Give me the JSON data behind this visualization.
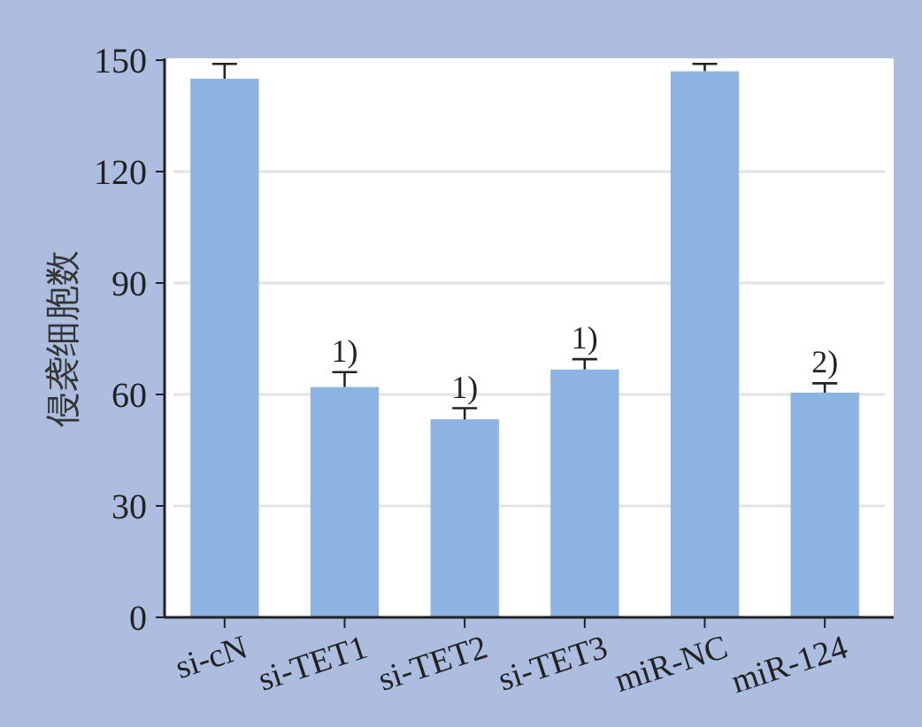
{
  "chart_data": {
    "type": "bar",
    "ylabel": "侵袭细胞数",
    "categories": [
      "si-cN",
      "si-TET1",
      "si-TET2",
      "si-TET3",
      "miR-NC",
      "miR-124"
    ],
    "values": [
      145,
      62,
      53.3,
      66.7,
      147,
      60.5
    ],
    "errors": [
      [
        145,
        149
      ],
      [
        62,
        66
      ],
      [
        53.3,
        56.3
      ],
      [
        66.7,
        69.5
      ],
      [
        147,
        149
      ],
      [
        60.5,
        63
      ]
    ],
    "color": "#8db3e2",
    "ylim": [
      0,
      150
    ],
    "yticks": [
      0,
      30,
      60,
      90,
      120,
      150
    ],
    "grid": "y",
    "annotations": [
      {
        "text": "1)",
        "x": "si-TET1",
        "y": 66
      },
      {
        "text": "1)",
        "x": "si-TET2",
        "y": 56.3
      },
      {
        "text": "1)",
        "x": "si-TET3",
        "y": 69.5
      },
      {
        "text": "2)",
        "x": "miR-124",
        "y": 63
      }
    ]
  }
}
